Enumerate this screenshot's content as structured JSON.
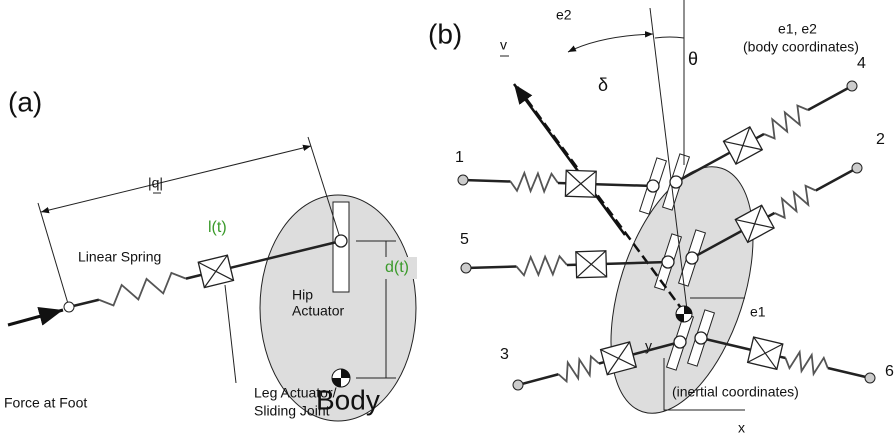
{
  "panel_a": {
    "label": "(a)",
    "q_label": "|q|",
    "spring_label": "Linear Spring",
    "length_label": "l(t)",
    "hip_label": [
      "Hip",
      "Actuator"
    ],
    "offset_label": "d(t)",
    "force_label": "Force at Foot",
    "leg_label": [
      "Leg Actuator/",
      "Sliding Joint"
    ],
    "body_label": "Body"
  },
  "panel_b": {
    "label": "(b)",
    "e2_label": "e2",
    "v_label": "v",
    "delta": "δ",
    "theta": "θ",
    "body_axes": [
      "e1, e2",
      "(body coordinates)"
    ],
    "legs": [
      "1",
      "2",
      "3",
      "4",
      "5",
      "6"
    ],
    "e1_label": "e1",
    "y_label": "y",
    "inertial_label": "(inertial coordinates)",
    "x_label": "x"
  }
}
